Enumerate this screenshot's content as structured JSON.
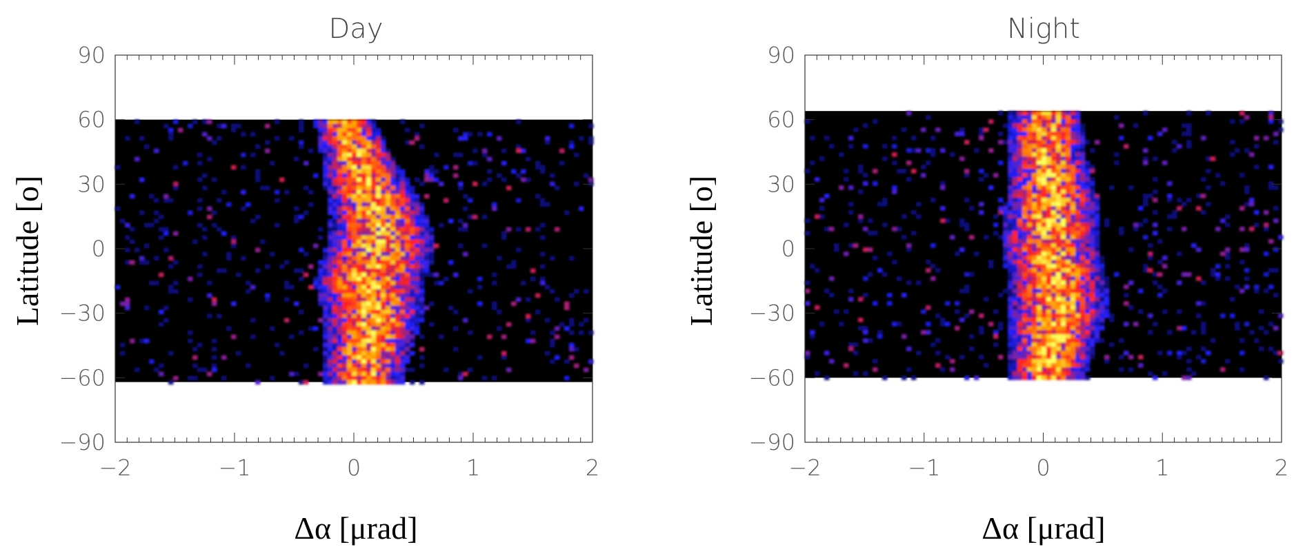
{
  "chart_data": [
    {
      "type": "heatmap",
      "title": "Day",
      "xlabel": "Δα [μrad]",
      "ylabel": "Latitude [o]",
      "xlim": [
        -2,
        2
      ],
      "ylim": [
        -90,
        90
      ],
      "xticks": [
        -2,
        -1,
        0,
        1,
        2
      ],
      "xtick_labels": [
        "−2",
        "−1",
        "0",
        "1",
        "2"
      ],
      "yticks": [
        90,
        60,
        30,
        0,
        -30,
        -60,
        -90
      ],
      "ytick_labels": [
        "90",
        "60",
        "30",
        "0",
        "−30",
        "−60",
        "−90"
      ],
      "data_lat_range": [
        -62,
        60
      ],
      "colormap": [
        "#000000",
        "#2020ff",
        "#ff2020",
        "#ffa000",
        "#ffff60"
      ],
      "ridge": {
        "lat": [
          60,
          45,
          30,
          15,
          0,
          -15,
          -30,
          -45,
          -62
        ],
        "center": [
          -0.1,
          0.0,
          0.1,
          0.2,
          0.2,
          0.1,
          0.15,
          0.1,
          0.05
        ],
        "width": [
          0.15,
          0.18,
          0.22,
          0.25,
          0.28,
          0.28,
          0.25,
          0.22,
          0.2
        ]
      }
    },
    {
      "type": "heatmap",
      "title": "Night",
      "xlabel": "Δα [μrad]",
      "ylabel": "Latitude [o]",
      "xlim": [
        -2,
        2
      ],
      "ylim": [
        -90,
        90
      ],
      "xticks": [
        -2,
        -1,
        0,
        1,
        2
      ],
      "xtick_labels": [
        "−2",
        "−1",
        "0",
        "1",
        "2"
      ],
      "yticks": [
        90,
        60,
        30,
        0,
        -30,
        -60,
        -90
      ],
      "ytick_labels": [
        "90",
        "60",
        "30",
        "0",
        "−30",
        "−60",
        "−90"
      ],
      "data_lat_range": [
        -60,
        64
      ],
      "colormap": [
        "#000000",
        "#2020ff",
        "#ff2020",
        "#ffa000",
        "#ffff60"
      ],
      "ridge": {
        "lat": [
          64,
          45,
          30,
          15,
          0,
          -15,
          -30,
          -45,
          -60
        ],
        "center": [
          0.0,
          0.0,
          0.05,
          0.05,
          0.05,
          0.1,
          0.1,
          0.05,
          0.0
        ],
        "width": [
          0.18,
          0.2,
          0.22,
          0.25,
          0.25,
          0.25,
          0.25,
          0.22,
          0.2
        ]
      }
    }
  ]
}
